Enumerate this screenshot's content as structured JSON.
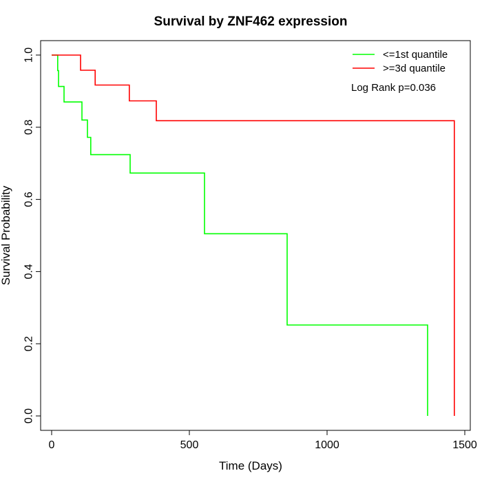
{
  "chart_data": {
    "type": "line",
    "title": "Survival by ZNF462 expression",
    "xlabel": "Time (Days)",
    "ylabel": "Survival Probability",
    "xlim": [
      -40,
      1520
    ],
    "ylim": [
      -0.04,
      1.04
    ],
    "x_ticks": [
      0,
      500,
      1000,
      1500
    ],
    "y_ticks": [
      0.0,
      0.2,
      0.4,
      0.6,
      0.8,
      1.0
    ],
    "x_tick_labels": [
      "0",
      "500",
      "1000",
      "1500"
    ],
    "y_tick_labels": [
      "0.0",
      "0.2",
      "0.4",
      "0.6",
      "0.8",
      "1.0"
    ],
    "grid": false,
    "legend_position": "top-right",
    "annotation": "Log Rank p=0.036",
    "series": [
      {
        "name": "<=1st quantile",
        "color": "#00ff00",
        "x": [
          0,
          22,
          22,
          25,
          25,
          45,
          45,
          110,
          110,
          130,
          130,
          142,
          142,
          285,
          285,
          555,
          555,
          855,
          855,
          1365,
          1365
        ],
        "y": [
          1.0,
          1.0,
          0.957,
          0.957,
          0.913,
          0.913,
          0.87,
          0.87,
          0.82,
          0.82,
          0.772,
          0.772,
          0.724,
          0.724,
          0.673,
          0.673,
          0.505,
          0.505,
          0.252,
          0.252,
          0.0
        ]
      },
      {
        "name": ">=3d quantile",
        "color": "#ff0000",
        "x": [
          0,
          105,
          105,
          158,
          158,
          282,
          282,
          380,
          380,
          1462,
          1462
        ],
        "y": [
          1.0,
          1.0,
          0.958,
          0.958,
          0.917,
          0.917,
          0.873,
          0.873,
          0.818,
          0.818,
          0.0
        ]
      }
    ]
  }
}
